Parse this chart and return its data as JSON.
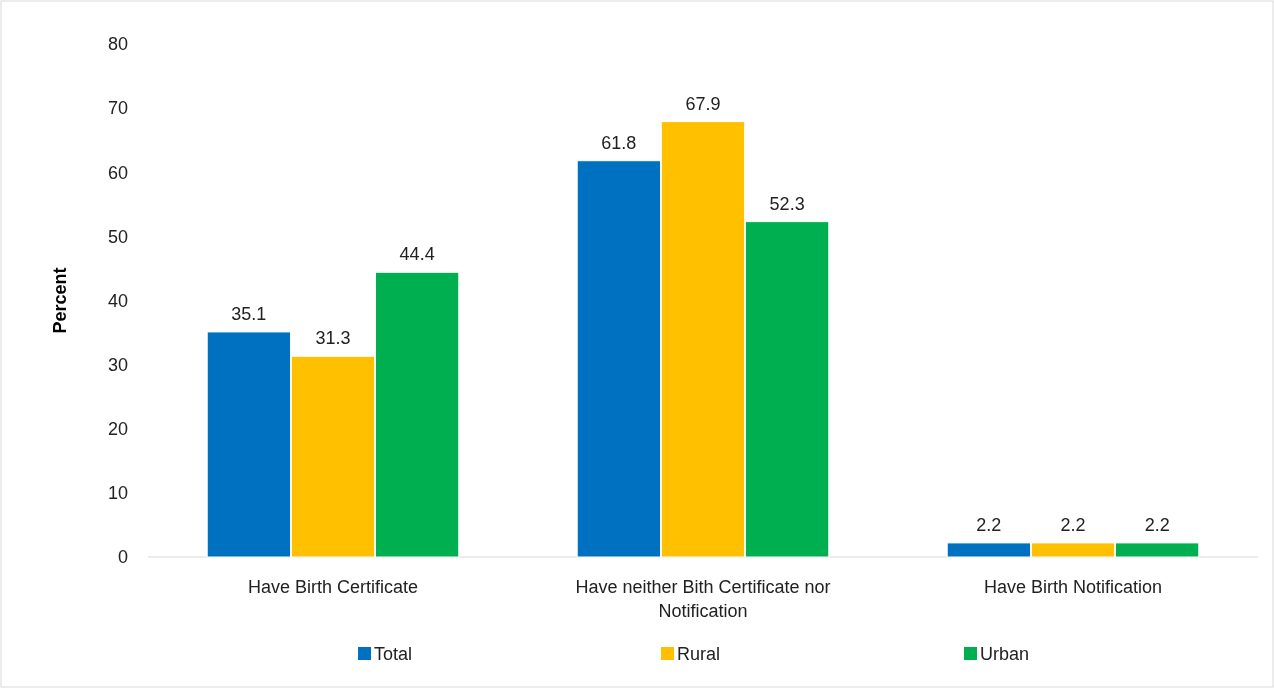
{
  "chart_data": {
    "type": "bar",
    "ylabel": "Percent",
    "categories": [
      "Have Birth Certificate",
      "Have neither Bith Certificate nor Notification",
      "Have Birth Notification"
    ],
    "series": [
      {
        "name": "Total",
        "color": "#0070c0",
        "values": [
          35.1,
          61.8,
          2.2
        ]
      },
      {
        "name": "Rural",
        "color": "#ffc000",
        "values": [
          31.3,
          67.9,
          2.2
        ]
      },
      {
        "name": "Urban",
        "color": "#00b050",
        "values": [
          44.4,
          52.3,
          2.2
        ]
      }
    ],
    "ylim": [
      0,
      80
    ],
    "yticks": [
      0,
      10,
      20,
      30,
      40,
      50,
      60,
      70,
      80
    ],
    "grid": false,
    "legend": "bottom",
    "data_labels": true
  }
}
